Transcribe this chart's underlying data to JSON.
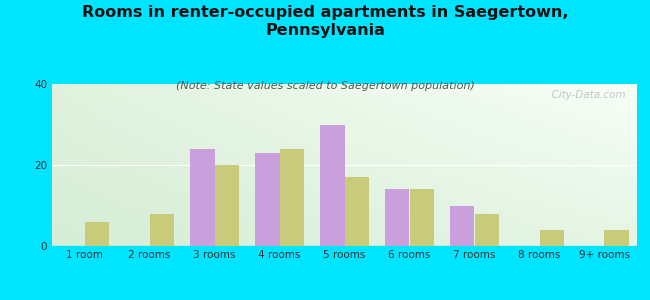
{
  "title": "Rooms in renter-occupied apartments in Saegertown,\nPennsylvania",
  "subtitle": "(Note: State values scaled to Saegertown population)",
  "categories": [
    "1 room",
    "2 rooms",
    "3 rooms",
    "4 rooms",
    "5 rooms",
    "6 rooms",
    "7 rooms",
    "8 rooms",
    "9+ rooms"
  ],
  "saegertown_values": [
    0,
    0,
    24,
    23,
    30,
    14,
    10,
    0,
    0
  ],
  "pennsylvania_values": [
    6,
    8,
    20,
    24,
    17,
    14,
    8,
    4,
    4
  ],
  "saegertown_color": "#c9a0dc",
  "pennsylvania_color": "#c8cc7a",
  "background_color": "#00e5ff",
  "ylim": [
    0,
    40
  ],
  "yticks": [
    0,
    20,
    40
  ],
  "watermark": "  City-Data.com",
  "bar_width": 0.38,
  "title_fontsize": 11.5,
  "subtitle_fontsize": 8,
  "legend_fontsize": 9.5,
  "tick_fontsize": 7.5
}
